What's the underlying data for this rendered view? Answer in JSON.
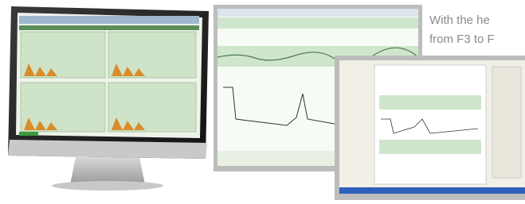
{
  "text": {
    "lines": [
      "With the he",
      "from F3 to F"
    ]
  }
}
